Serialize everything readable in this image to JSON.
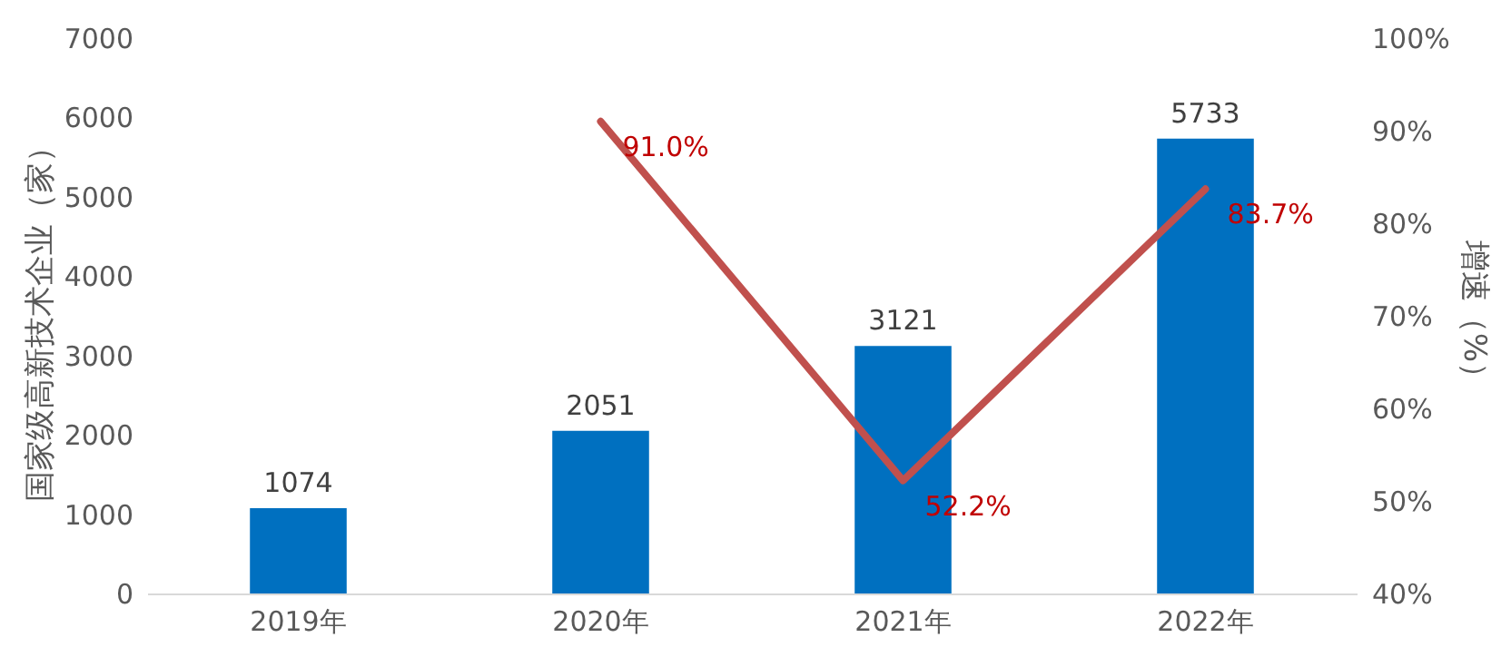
{
  "chart_data": {
    "type": "bar",
    "categories": [
      "2019年",
      "2020年",
      "2021年",
      "2022年"
    ],
    "ylabel": "国家级高新技术企业（家）",
    "y2label": "增速（%）",
    "ylim": [
      0,
      7000
    ],
    "yticks": [
      0,
      1000,
      2000,
      3000,
      4000,
      5000,
      6000,
      7000
    ],
    "y2lim": [
      40,
      100
    ],
    "y2ticks": [
      {
        "value": 40,
        "label": "40%"
      },
      {
        "value": 50,
        "label": "50%"
      },
      {
        "value": 60,
        "label": "60%"
      },
      {
        "value": 70,
        "label": "70%"
      },
      {
        "value": 80,
        "label": "80%"
      },
      {
        "value": 90,
        "label": "90%"
      },
      {
        "value": 100,
        "label": "100%"
      }
    ],
    "data_labels": true,
    "series": [
      {
        "color": "#0070c0",
        "values": [
          1074,
          2051,
          3121,
          5733
        ]
      },
      {
        "type": "line",
        "axis": "y2",
        "color": "#c0504d",
        "values": [
          null,
          91.0,
          52.2,
          83.7
        ],
        "value_labels": [
          null,
          "91.0%",
          "52.2%",
          "83.7%"
        ]
      }
    ]
  }
}
